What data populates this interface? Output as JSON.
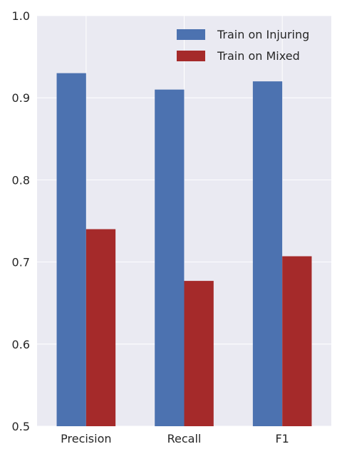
{
  "chart_data": {
    "type": "bar",
    "title": "",
    "xlabel": "",
    "ylabel": "",
    "categories": [
      "Precision",
      "Recall",
      "F1"
    ],
    "series": [
      {
        "name": "Train on Injuring",
        "values": [
          0.93,
          0.91,
          0.92
        ],
        "color": "#4c72b0"
      },
      {
        "name": "Train on Mixed",
        "values": [
          0.74,
          0.677,
          0.707
        ],
        "color": "#a52a2a"
      }
    ],
    "ylim": [
      0.5,
      1.0
    ],
    "yticks": [
      "0.5",
      "0.6",
      "0.7",
      "0.8",
      "0.9",
      "1.0"
    ],
    "grid": true,
    "legend_position": "top-right",
    "background_color": "#eaeaf2"
  }
}
